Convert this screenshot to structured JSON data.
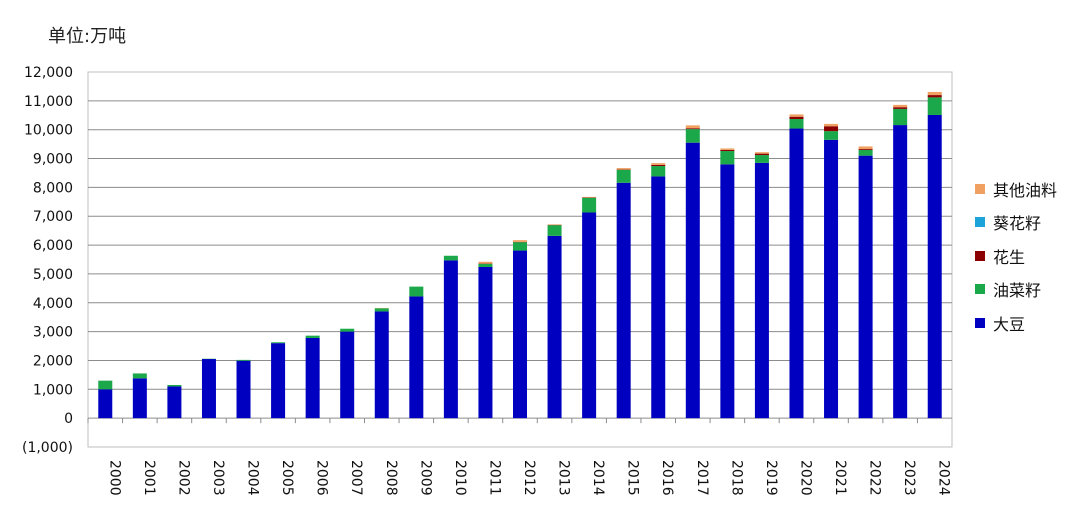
{
  "unit_label": "单位:万吨",
  "chart_data": {
    "type": "bar",
    "stacked": true,
    "categories": [
      "2000",
      "2001",
      "2002",
      "2003",
      "2004",
      "2005",
      "2006",
      "2007",
      "2008",
      "2009",
      "2010",
      "2011",
      "2012",
      "2013",
      "2014",
      "2015",
      "2016",
      "2017",
      "2018",
      "2019",
      "2020",
      "2021",
      "2022",
      "2023",
      "2024"
    ],
    "series": [
      {
        "name": "大豆",
        "color": "#0000c0",
        "values": [
          1000,
          1380,
          1100,
          2050,
          1990,
          2600,
          2780,
          3000,
          3700,
          4220,
          5470,
          5240,
          5810,
          6320,
          7130,
          8160,
          8380,
          9550,
          8800,
          8850,
          10040,
          9650,
          9100,
          10160,
          10510
        ]
      },
      {
        "name": "油菜籽",
        "color": "#1aa84a",
        "values": [
          300,
          170,
          50,
          10,
          30,
          30,
          80,
          100,
          110,
          340,
          160,
          110,
          290,
          370,
          510,
          450,
          360,
          470,
          460,
          270,
          330,
          300,
          200,
          560,
          610
        ]
      },
      {
        "name": "花生",
        "color": "#8b0000",
        "values": [
          0,
          0,
          0,
          0,
          0,
          0,
          0,
          0,
          0,
          0,
          0,
          10,
          10,
          10,
          10,
          10,
          40,
          30,
          40,
          50,
          80,
          170,
          30,
          60,
          80
        ]
      },
      {
        "name": "葵花籽",
        "color": "#1ca3d9",
        "values": [
          0,
          0,
          0,
          0,
          0,
          0,
          0,
          0,
          0,
          0,
          0,
          0,
          0,
          0,
          0,
          0,
          0,
          0,
          0,
          0,
          0,
          0,
          0,
          0,
          0
        ]
      },
      {
        "name": "其他油料",
        "color": "#f0a060",
        "values": [
          0,
          0,
          0,
          0,
          0,
          0,
          0,
          0,
          10,
          0,
          0,
          60,
          60,
          20,
          20,
          50,
          60,
          100,
          50,
          50,
          80,
          80,
          90,
          80,
          110
        ]
      }
    ],
    "y_ticks": [
      "(1,000)",
      "0",
      "1,000",
      "2,000",
      "3,000",
      "4,000",
      "5,000",
      "6,000",
      "7,000",
      "8,000",
      "9,000",
      "10,000",
      "11,000",
      "12,000"
    ],
    "ylim": [
      -1000,
      12000
    ],
    "grid": true,
    "legend_position": "right",
    "legend_order": [
      "其他油料",
      "葵花籽",
      "花生",
      "油菜籽",
      "大豆"
    ]
  }
}
